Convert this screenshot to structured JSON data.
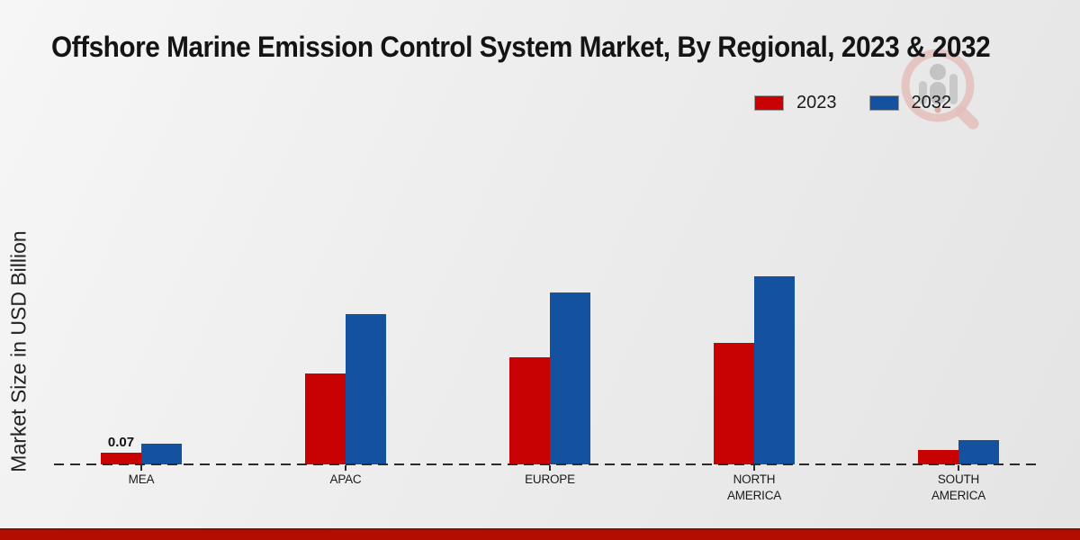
{
  "title": "Offshore Marine Emission Control System Market, By Regional, 2023 & 2032",
  "y_axis_label": "Market Size in USD Billion",
  "legend": {
    "items": [
      {
        "label": "2023",
        "color": "#c80202"
      },
      {
        "label": "2032",
        "color": "#14519f"
      }
    ]
  },
  "annotation": {
    "text": "0.07",
    "category": "MEA",
    "series": "2023"
  },
  "colors": {
    "bar_2023": "#c80202",
    "bar_2032": "#14519f",
    "baseline": "#2b2b2b",
    "bottom_strip": "#b30d02",
    "background": "#ececec"
  },
  "watermark": {
    "name": "market-research-logo"
  },
  "chart_data": {
    "type": "bar",
    "categories": [
      "MEA",
      "APAC",
      "EUROPE",
      "NORTH AMERICA",
      "SOUTH AMERICA"
    ],
    "series": [
      {
        "name": "2023",
        "color": "#c80202",
        "values": [
          0.07,
          0.56,
          0.66,
          0.75,
          0.09
        ]
      },
      {
        "name": "2032",
        "color": "#14519f",
        "values": [
          0.13,
          0.93,
          1.06,
          1.16,
          0.15
        ]
      }
    ],
    "title": "Offshore Marine Emission Control System Market, By Regional, 2023 & 2032",
    "xlabel": "",
    "ylabel": "Market Size in USD Billion",
    "ylim": [
      0,
      1.3
    ],
    "grid": false,
    "legend_position": "top-right",
    "baseline_style": "dashed",
    "data_labels": [
      {
        "category": "MEA",
        "series": "2023",
        "text": "0.07"
      }
    ]
  }
}
